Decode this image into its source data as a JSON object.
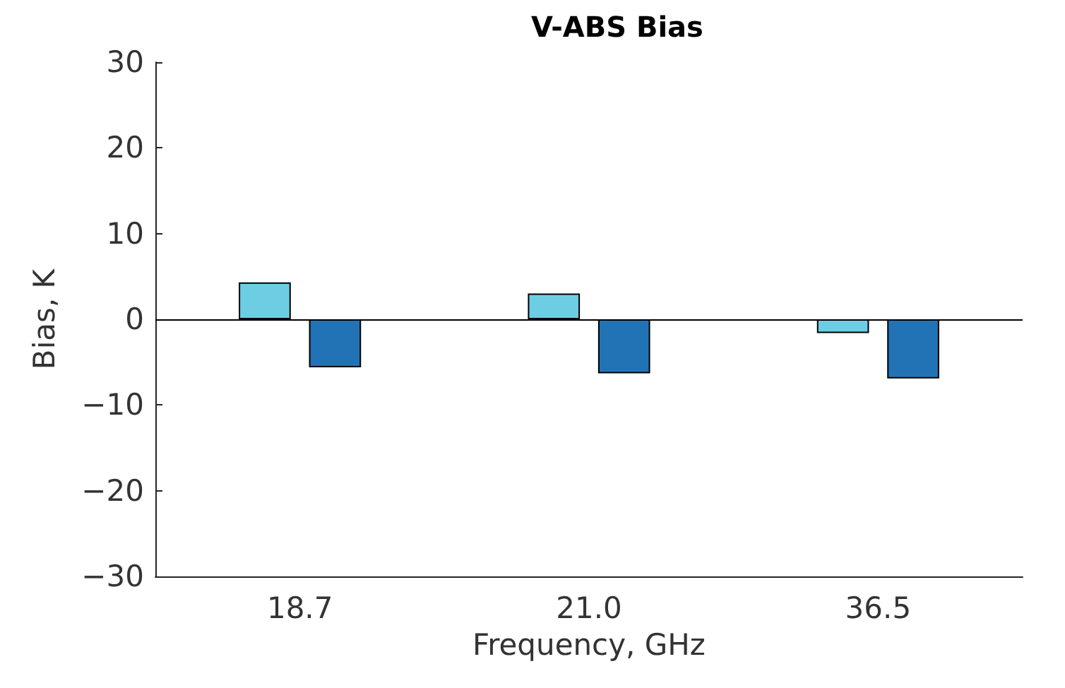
{
  "chart_data": {
    "type": "bar",
    "title": "V-ABS Bias",
    "xlabel": "Frequency, GHz",
    "ylabel": "Bias, K",
    "categories": [
      "18.7",
      "21.0",
      "36.5"
    ],
    "series": [
      {
        "color": "#6dcde3",
        "values": [
          4.3,
          3.0,
          -1.6
        ]
      },
      {
        "color": "#2273b5",
        "values": [
          -5.6,
          -6.3,
          -6.9
        ]
      }
    ],
    "ylim": [
      -30,
      30
    ],
    "yticks": [
      -30,
      -20,
      -10,
      0,
      10,
      20,
      30
    ],
    "grid": false,
    "ref_lines": [
      {
        "axis": "y",
        "value": 0,
        "color": "#000000"
      }
    ]
  }
}
